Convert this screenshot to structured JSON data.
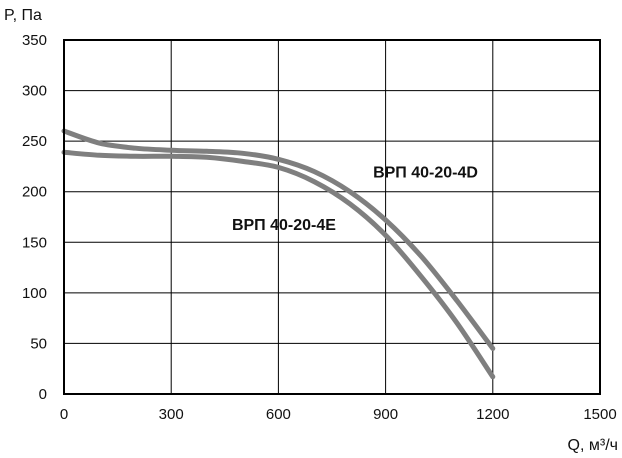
{
  "chart_data": {
    "type": "line",
    "xlabel": "Q, м³/ч",
    "ylabel": "P, Па",
    "xlim": [
      0,
      1500
    ],
    "ylim": [
      0,
      350
    ],
    "x_ticks": [
      0,
      300,
      600,
      900,
      1200,
      1500
    ],
    "y_ticks": [
      0,
      50,
      100,
      150,
      200,
      250,
      300,
      350
    ],
    "grid": true,
    "line_color": "#7f7f7f",
    "series": [
      {
        "name": "ВРП 40-20-4D",
        "x": [
          0,
          100,
          200,
          300,
          400,
          500,
          600,
          700,
          800,
          900,
          1000,
          1100,
          1200
        ],
        "y": [
          260,
          248,
          243,
          241,
          240,
          238,
          232,
          220,
          200,
          172,
          136,
          92,
          45
        ]
      },
      {
        "name": "ВРП 40-20-4E",
        "x": [
          0,
          100,
          200,
          300,
          400,
          500,
          600,
          700,
          800,
          900,
          1000,
          1100,
          1200
        ],
        "y": [
          239,
          236,
          235,
          235,
          234,
          230,
          224,
          210,
          188,
          157,
          116,
          70,
          17
        ]
      }
    ],
    "series_labels": [
      {
        "name": "ВРП 40-20-4D",
        "x": 865,
        "y": 214
      },
      {
        "name": "ВРП 40-20-4E",
        "x": 470,
        "y": 162
      }
    ]
  }
}
